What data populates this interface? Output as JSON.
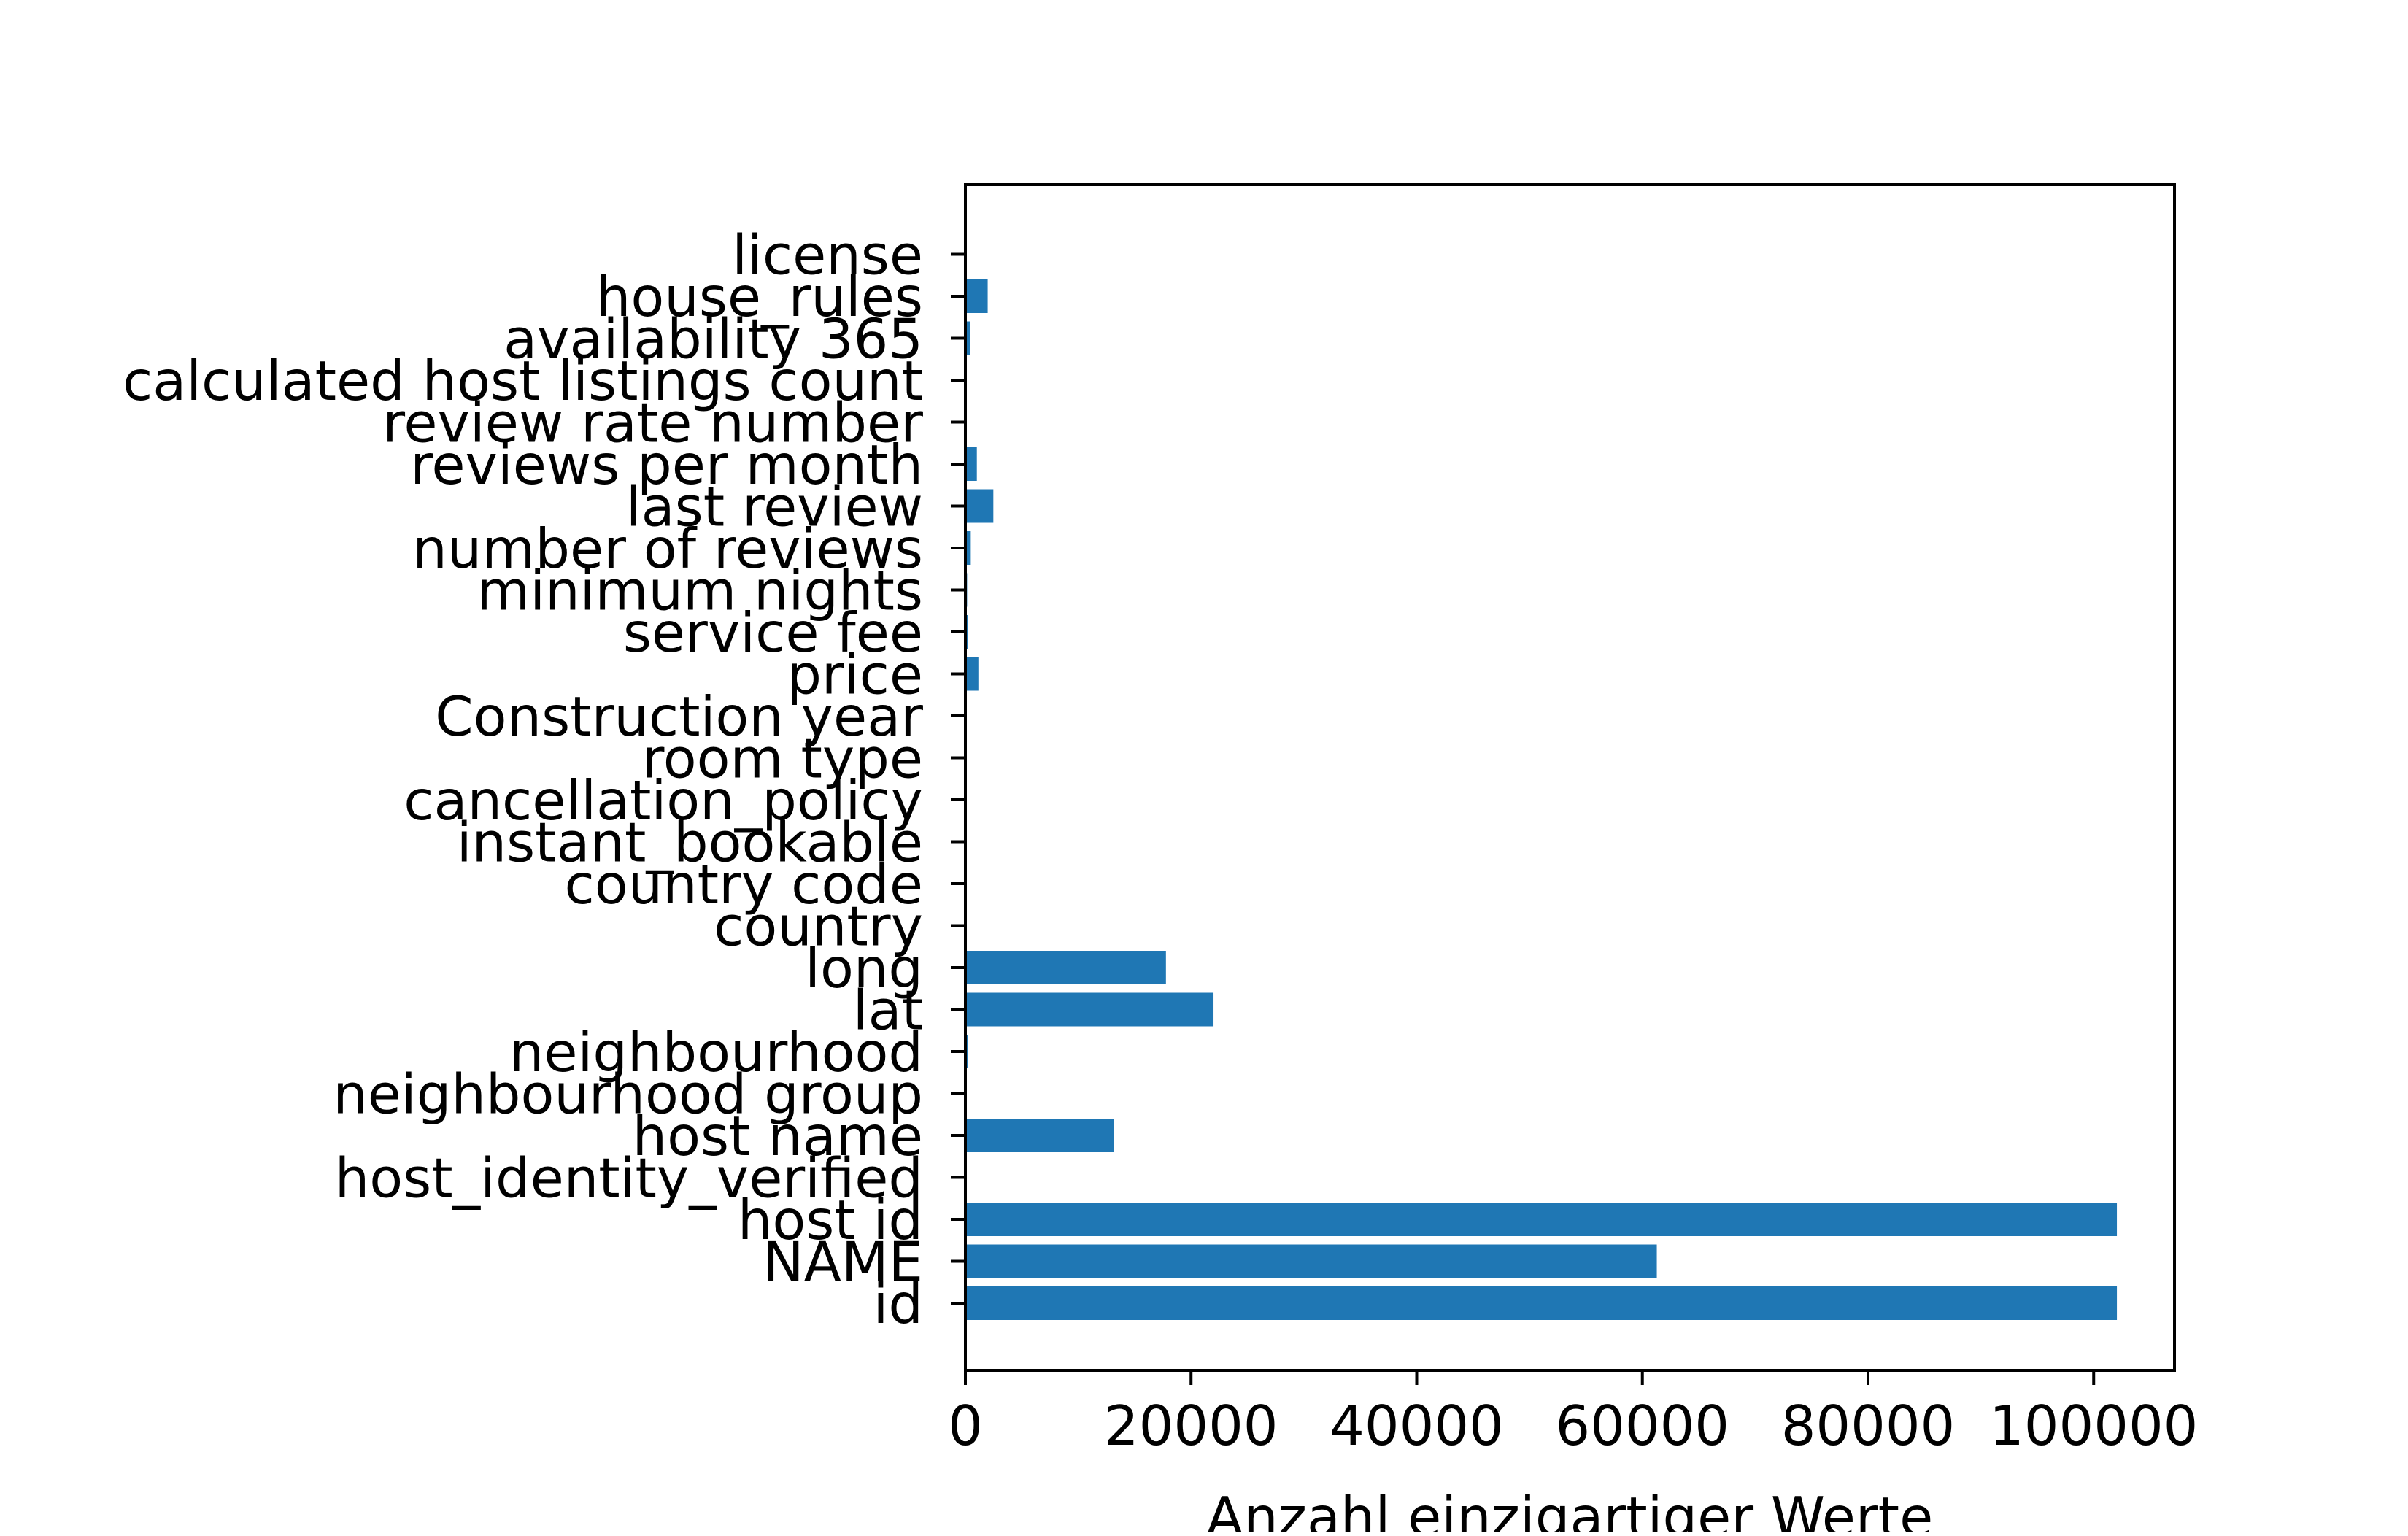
{
  "chart_data": {
    "type": "bar",
    "orientation": "horizontal",
    "categories": [
      "id",
      "NAME",
      "host id",
      "host_identity_verified",
      "host name",
      "neighbourhood group",
      "neighbourhood",
      "lat",
      "long",
      "country",
      "country code",
      "instant_bookable",
      "cancellation_policy",
      "room type",
      "Construction year",
      "price",
      "service fee",
      "minimum nights",
      "number of reviews",
      "last review",
      "reviews per month",
      "review rate number",
      "calculated host listings count",
      "availability 365",
      "house_rules",
      "license"
    ],
    "values": [
      102058,
      61281,
      102057,
      3,
      13190,
      8,
      224,
      21991,
      17774,
      2,
      2,
      3,
      4,
      4,
      21,
      1152,
      232,
      154,
      477,
      2478,
      1017,
      6,
      79,
      439,
      1977,
      2
    ],
    "xlabel": "Anzahl einzigartiger Werte",
    "ylabel": "",
    "xlim": [
      0,
      107163
    ],
    "xticks": [
      0,
      20000,
      40000,
      60000,
      80000,
      100000
    ],
    "xtick_labels": [
      "0",
      "20000",
      "40000",
      "60000",
      "80000",
      "100000"
    ],
    "grid": false,
    "bar_color": "#1f77b4"
  }
}
